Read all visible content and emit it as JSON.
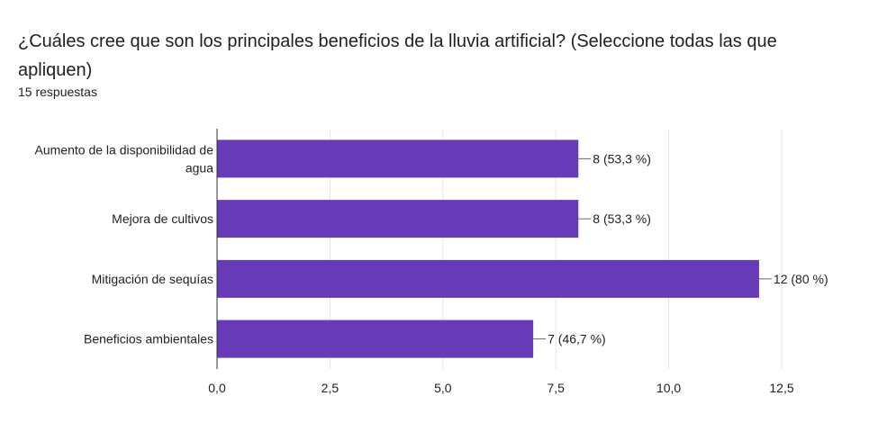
{
  "title": "¿Cuáles cree que son los principales beneficios de la lluvia artificial? (Seleccione todas las que apliquen)",
  "subtitle": "15 respuestas",
  "chart_data": {
    "type": "bar",
    "orientation": "horizontal",
    "categories": [
      [
        "Aumento de la disponibilidad de",
        "agua"
      ],
      [
        "Mejora de cultivos"
      ],
      [
        "Mitigación de sequías"
      ],
      [
        "Beneficios ambientales"
      ]
    ],
    "values": [
      8,
      8,
      12,
      7
    ],
    "data_labels": [
      "8 (53,3 %)",
      "8 (53,3 %)",
      "12 (80 %)",
      "7 (46,7 %)"
    ],
    "xlim": [
      0,
      12.5
    ],
    "xticks": [
      0,
      2.5,
      5,
      7.5,
      10,
      12.5
    ],
    "xtick_labels": [
      "0,0",
      "2,5",
      "5,0",
      "7,5",
      "10,0",
      "12,5"
    ],
    "grid": true,
    "bar_color": "#673ab7",
    "grid_color": "#e6e6e6",
    "axis_color": "#333333"
  }
}
